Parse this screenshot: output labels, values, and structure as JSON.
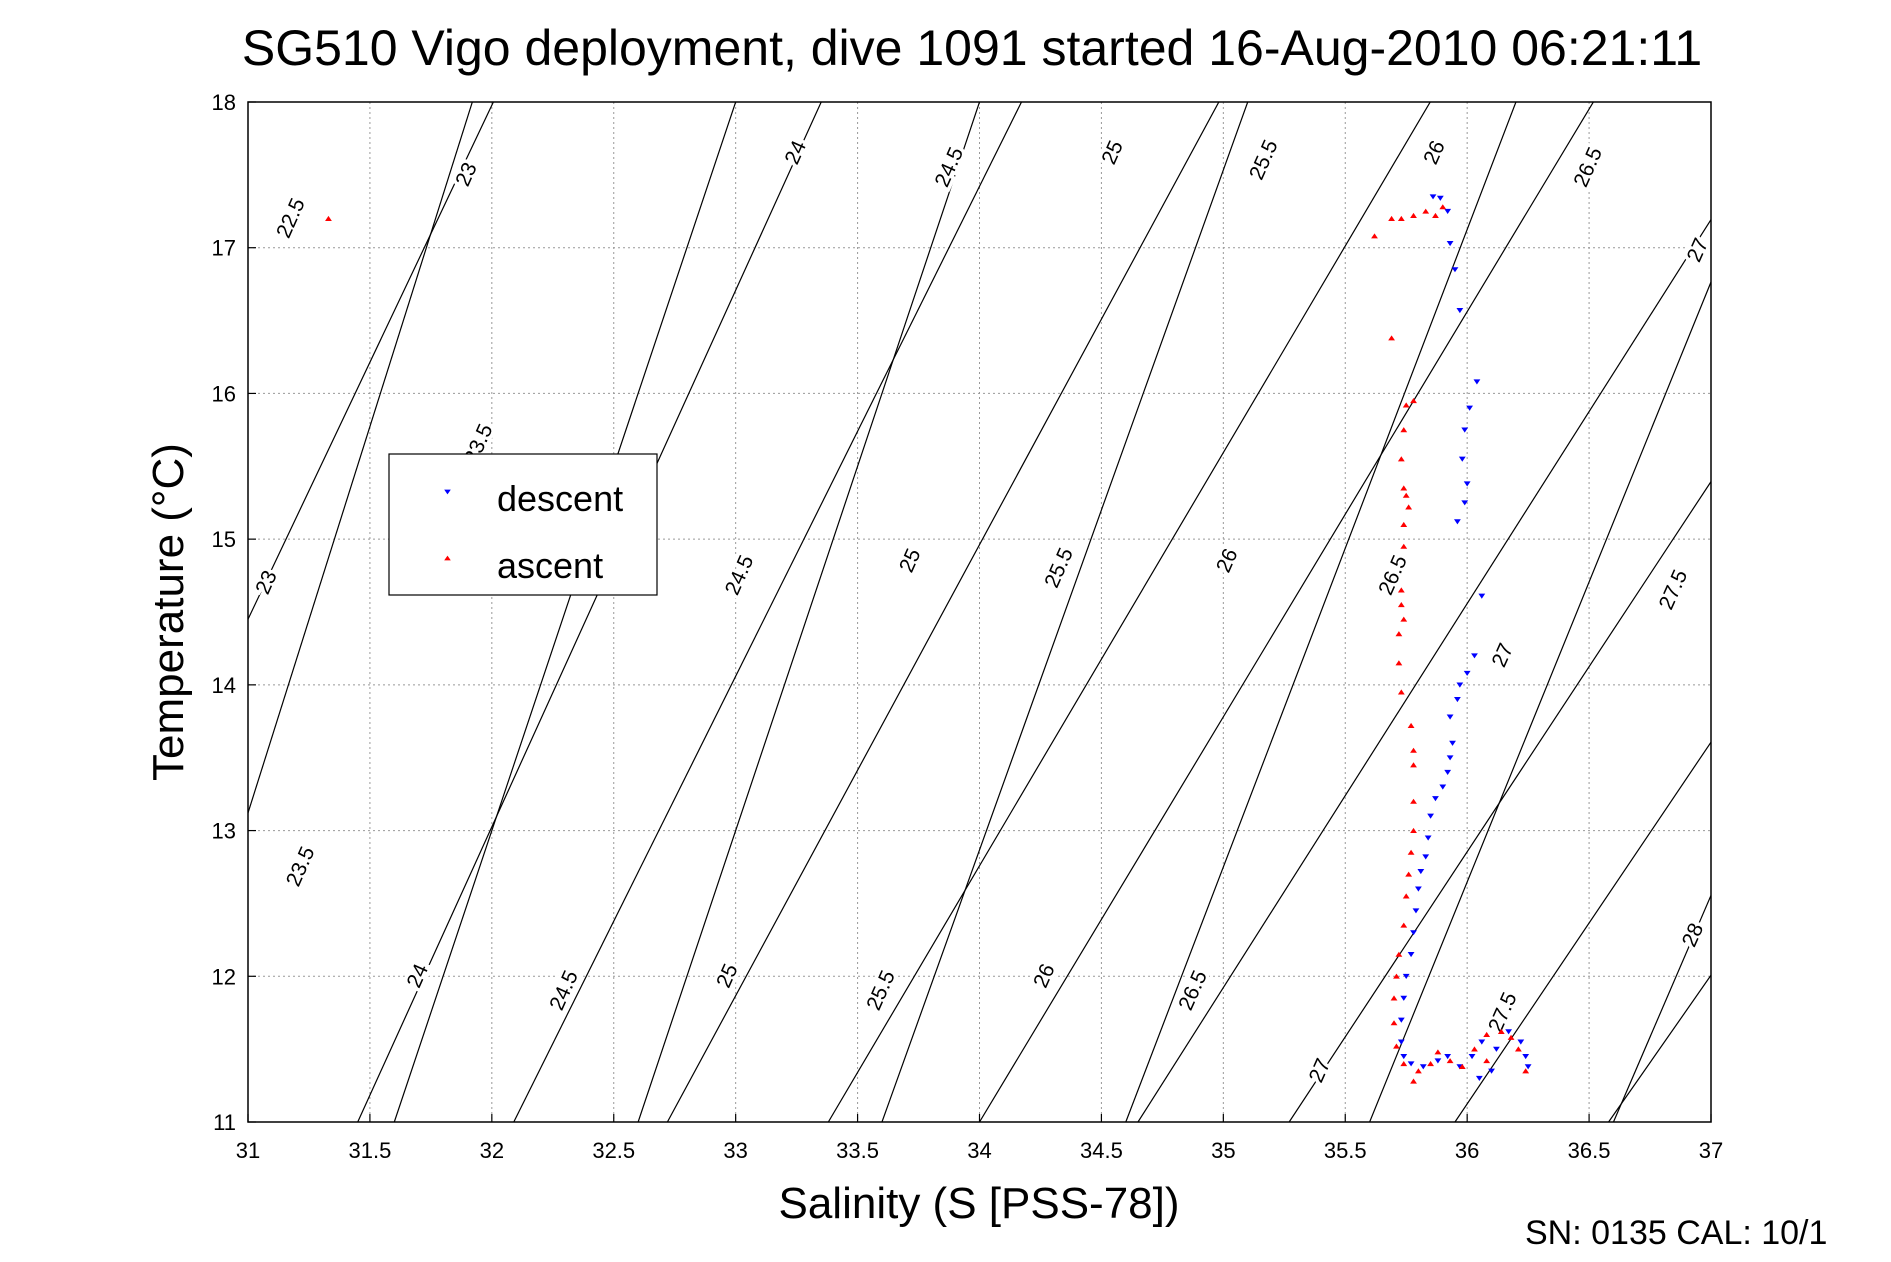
{
  "chart_data": {
    "type": "scatter",
    "title": "SG510 Vigo deployment, dive 1091 started 16-Aug-2010 06:21:11",
    "xlabel": "Salinity (S [PSS-78])",
    "ylabel": "Temperature (°C)",
    "footer": "SN: 0135  CAL: 10/1",
    "xlim": [
      31,
      37
    ],
    "ylim": [
      11,
      18
    ],
    "x_ticks": [
      "31",
      "31.5",
      "32",
      "32.5",
      "33",
      "33.5",
      "34",
      "34.5",
      "35",
      "35.5",
      "36",
      "36.5",
      "37"
    ],
    "y_ticks": [
      "11",
      "12",
      "13",
      "14",
      "15",
      "16",
      "17",
      "18"
    ],
    "grid": true,
    "legend": {
      "placement": "center-left",
      "entries": [
        "descent",
        "ascent"
      ]
    },
    "colors": {
      "descent": "#0000ff",
      "ascent": "#ff0000",
      "contour": "#000000",
      "grid": "#999999"
    },
    "density_contours": {
      "labels": [
        {
          "text": "22.5",
          "x": 31.18,
          "y": 17.2
        },
        {
          "text": "23",
          "x": 31.9,
          "y": 17.5
        },
        {
          "text": "24",
          "x": 33.25,
          "y": 17.65
        },
        {
          "text": "24.5",
          "x": 33.88,
          "y": 17.55
        },
        {
          "text": "25",
          "x": 34.55,
          "y": 17.65
        },
        {
          "text": "25.5",
          "x": 35.17,
          "y": 17.6
        },
        {
          "text": "26",
          "x": 35.87,
          "y": 17.65
        },
        {
          "text": "26.5",
          "x": 36.5,
          "y": 17.55
        },
        {
          "text": "27",
          "x": 36.95,
          "y": 16.98
        },
        {
          "text": "23.5",
          "x": 31.95,
          "y": 15.65
        },
        {
          "text": "23",
          "x": 31.08,
          "y": 14.7
        },
        {
          "text": "24.5",
          "x": 33.02,
          "y": 14.75
        },
        {
          "text": "25",
          "x": 33.72,
          "y": 14.85
        },
        {
          "text": "25.5",
          "x": 34.33,
          "y": 14.8
        },
        {
          "text": "26",
          "x": 35.02,
          "y": 14.85
        },
        {
          "text": "26.5",
          "x": 35.7,
          "y": 14.75
        },
        {
          "text": "27",
          "x": 36.15,
          "y": 14.2
        },
        {
          "text": "27.5",
          "x": 36.85,
          "y": 14.65
        },
        {
          "text": "23.5",
          "x": 31.22,
          "y": 12.75
        },
        {
          "text": "24",
          "x": 31.7,
          "y": 12.0
        },
        {
          "text": "24.5",
          "x": 32.3,
          "y": 11.9
        },
        {
          "text": "25",
          "x": 32.97,
          "y": 12.0
        },
        {
          "text": "25.5",
          "x": 33.6,
          "y": 11.9
        },
        {
          "text": "26",
          "x": 34.27,
          "y": 12.0
        },
        {
          "text": "26.5",
          "x": 34.88,
          "y": 11.9
        },
        {
          "text": "27",
          "x": 35.4,
          "y": 11.35
        },
        {
          "text": "27.5",
          "x": 36.15,
          "y": 11.75
        },
        {
          "text": "28",
          "x": 36.93,
          "y": 12.28
        }
      ]
    },
    "series": [
      {
        "name": "descent",
        "marker": "triangle-down",
        "points": [
          [
            35.86,
            17.35
          ],
          [
            35.89,
            17.34
          ],
          [
            35.92,
            17.25
          ],
          [
            35.93,
            17.03
          ],
          [
            35.95,
            16.85
          ],
          [
            35.97,
            16.57
          ],
          [
            36.04,
            16.08
          ],
          [
            36.01,
            15.9
          ],
          [
            35.99,
            15.75
          ],
          [
            35.98,
            15.55
          ],
          [
            36.0,
            15.38
          ],
          [
            35.99,
            15.25
          ],
          [
            35.96,
            15.12
          ],
          [
            36.06,
            14.61
          ],
          [
            36.03,
            14.2
          ],
          [
            36.0,
            14.08
          ],
          [
            35.97,
            14.0
          ],
          [
            35.96,
            13.9
          ],
          [
            35.93,
            13.78
          ],
          [
            35.94,
            13.6
          ],
          [
            35.93,
            13.5
          ],
          [
            35.92,
            13.4
          ],
          [
            35.9,
            13.3
          ],
          [
            35.87,
            13.22
          ],
          [
            35.85,
            13.1
          ],
          [
            35.84,
            12.95
          ],
          [
            35.83,
            12.82
          ],
          [
            35.81,
            12.72
          ],
          [
            35.8,
            12.6
          ],
          [
            35.79,
            12.45
          ],
          [
            35.78,
            12.3
          ],
          [
            35.77,
            12.15
          ],
          [
            35.75,
            12.0
          ],
          [
            35.74,
            11.85
          ],
          [
            35.73,
            11.7
          ],
          [
            35.73,
            11.55
          ],
          [
            35.74,
            11.45
          ],
          [
            35.77,
            11.4
          ],
          [
            35.82,
            11.38
          ],
          [
            35.88,
            11.42
          ],
          [
            35.92,
            11.45
          ],
          [
            35.97,
            11.38
          ],
          [
            36.02,
            11.45
          ],
          [
            36.06,
            11.55
          ],
          [
            36.12,
            11.5
          ],
          [
            36.17,
            11.62
          ],
          [
            36.22,
            11.55
          ],
          [
            36.24,
            11.45
          ],
          [
            36.25,
            11.38
          ],
          [
            36.1,
            11.35
          ],
          [
            36.05,
            11.3
          ]
        ]
      },
      {
        "name": "ascent",
        "marker": "triangle-up",
        "points": [
          [
            31.33,
            17.2
          ],
          [
            35.62,
            17.08
          ],
          [
            35.69,
            17.2
          ],
          [
            35.73,
            17.2
          ],
          [
            35.78,
            17.22
          ],
          [
            35.83,
            17.25
          ],
          [
            35.87,
            17.22
          ],
          [
            35.9,
            17.28
          ],
          [
            35.69,
            16.38
          ],
          [
            35.78,
            15.95
          ],
          [
            35.75,
            15.92
          ],
          [
            35.74,
            15.75
          ],
          [
            35.73,
            15.55
          ],
          [
            35.74,
            15.35
          ],
          [
            35.75,
            15.3
          ],
          [
            35.76,
            15.22
          ],
          [
            35.74,
            15.1
          ],
          [
            35.74,
            14.95
          ],
          [
            35.73,
            14.65
          ],
          [
            35.73,
            14.55
          ],
          [
            35.74,
            14.45
          ],
          [
            35.72,
            14.35
          ],
          [
            35.72,
            14.15
          ],
          [
            35.73,
            13.95
          ],
          [
            35.77,
            13.72
          ],
          [
            35.78,
            13.55
          ],
          [
            35.78,
            13.45
          ],
          [
            35.78,
            13.2
          ],
          [
            35.78,
            13.0
          ],
          [
            35.77,
            12.85
          ],
          [
            35.76,
            12.7
          ],
          [
            35.75,
            12.55
          ],
          [
            35.74,
            12.35
          ],
          [
            35.72,
            12.15
          ],
          [
            35.71,
            12.0
          ],
          [
            35.7,
            11.85
          ],
          [
            35.7,
            11.68
          ],
          [
            35.71,
            11.52
          ],
          [
            35.74,
            11.4
          ],
          [
            35.78,
            11.28
          ],
          [
            35.8,
            11.35
          ],
          [
            35.85,
            11.4
          ],
          [
            35.88,
            11.48
          ],
          [
            35.93,
            11.42
          ],
          [
            35.98,
            11.38
          ],
          [
            36.03,
            11.5
          ],
          [
            36.08,
            11.6
          ],
          [
            36.14,
            11.62
          ],
          [
            36.18,
            11.58
          ],
          [
            36.21,
            11.5
          ],
          [
            36.24,
            11.35
          ],
          [
            36.08,
            11.42
          ]
        ]
      }
    ]
  }
}
